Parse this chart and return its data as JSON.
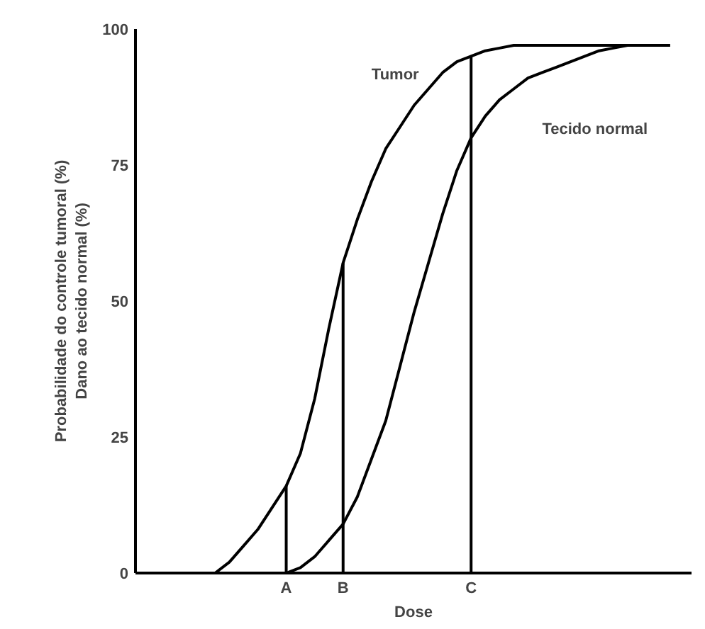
{
  "chart_data": {
    "type": "line",
    "xlabel": "Dose",
    "ylabel": "Probabilidade do controle tumoral (%)\nDano ao tecido normal (%)",
    "categories": [
      null,
      null,
      null,
      null,
      null,
      null,
      null,
      null,
      null,
      null,
      "A",
      null,
      null,
      null,
      "B",
      null,
      null,
      null,
      null,
      null,
      null,
      null,
      null,
      "C",
      null,
      null,
      null,
      null,
      null,
      null,
      null,
      null,
      null,
      null,
      null,
      null,
      null,
      null,
      null
    ],
    "ylim": [
      0,
      100
    ],
    "yticks": [
      0,
      25,
      50,
      75,
      100
    ],
    "grid": false,
    "legend": false,
    "marker": "none",
    "line_style": "solid",
    "series": [
      {
        "name": "Tumor",
        "color": "#000000",
        "values": [
          null,
          null,
          null,
          null,
          null,
          0,
          2,
          5,
          8,
          12,
          16,
          22,
          32,
          45,
          57,
          65,
          72,
          78,
          82,
          86,
          89,
          92,
          94,
          95,
          96,
          96.5,
          97,
          97,
          97,
          97,
          97,
          97,
          97,
          97,
          97,
          97,
          null,
          null,
          null
        ]
      },
      {
        "name": "Tecido normal",
        "color": "#000000",
        "values": [
          null,
          null,
          null,
          null,
          null,
          null,
          null,
          null,
          null,
          null,
          0,
          1,
          3,
          6,
          9,
          14,
          21,
          28,
          38,
          48,
          57,
          66,
          74,
          80,
          84,
          87,
          89,
          91,
          92,
          93,
          94,
          95,
          96,
          96.5,
          97,
          97,
          97,
          97,
          null
        ]
      },
      {
        "type": "bar",
        "color": "#000000",
        "values": [
          null,
          null,
          null,
          null,
          null,
          null,
          null,
          null,
          null,
          null,
          16,
          null,
          null,
          null,
          57,
          null,
          null,
          null,
          null,
          null,
          null,
          null,
          null,
          95,
          null,
          null,
          null,
          null,
          null,
          null,
          null,
          null,
          null,
          null,
          null,
          null,
          null,
          null,
          null
        ]
      }
    ]
  }
}
